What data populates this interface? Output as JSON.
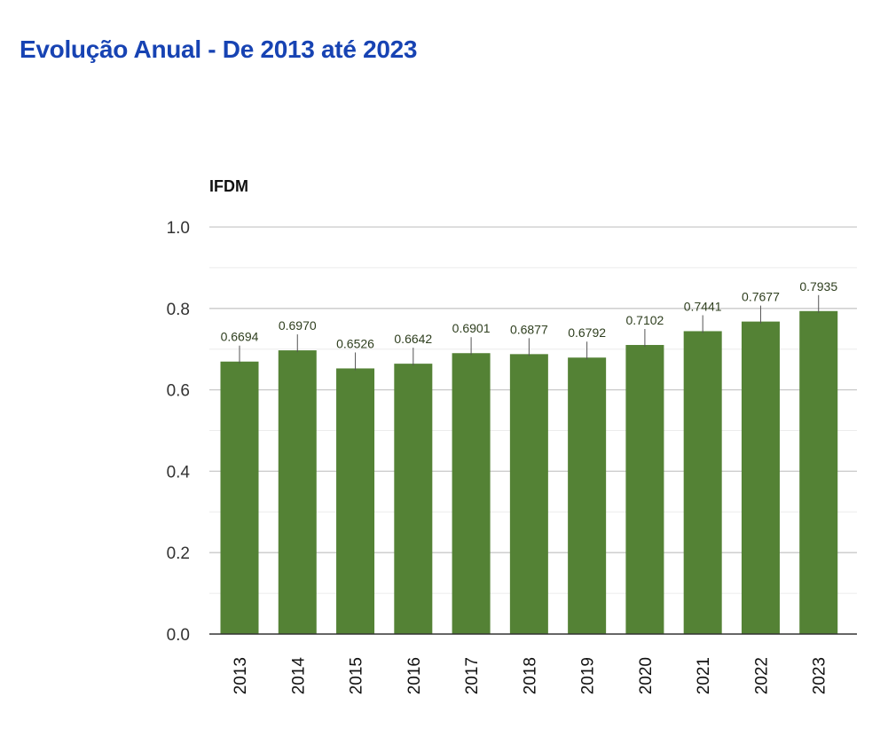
{
  "page": {
    "title": "Evolução Anual - De 2013 até 2023",
    "title_color": "#1743b3"
  },
  "chart_data": {
    "type": "bar",
    "title": "",
    "xlabel": "",
    "ylabel": "IFDM",
    "categories": [
      "2013",
      "2014",
      "2015",
      "2016",
      "2017",
      "2018",
      "2019",
      "2020",
      "2021",
      "2022",
      "2023"
    ],
    "values": [
      0.6694,
      0.697,
      0.6526,
      0.6642,
      0.6901,
      0.6877,
      0.6792,
      0.7102,
      0.7441,
      0.7677,
      0.7935
    ],
    "data_labels": [
      "0.6694",
      "0.6970",
      "0.6526",
      "0.6642",
      "0.6901",
      "0.6877",
      "0.6792",
      "0.7102",
      "0.7441",
      "0.7677",
      "0.7935"
    ],
    "ylim": [
      0.0,
      1.0
    ],
    "yticks": [
      0.0,
      0.2,
      0.4,
      0.6,
      0.8,
      1.0
    ],
    "ytick_labels": [
      "0.0",
      "0.2",
      "0.4",
      "0.6",
      "0.8",
      "1.0"
    ],
    "grid": true,
    "bar_color": "#548235",
    "legend": "none"
  }
}
